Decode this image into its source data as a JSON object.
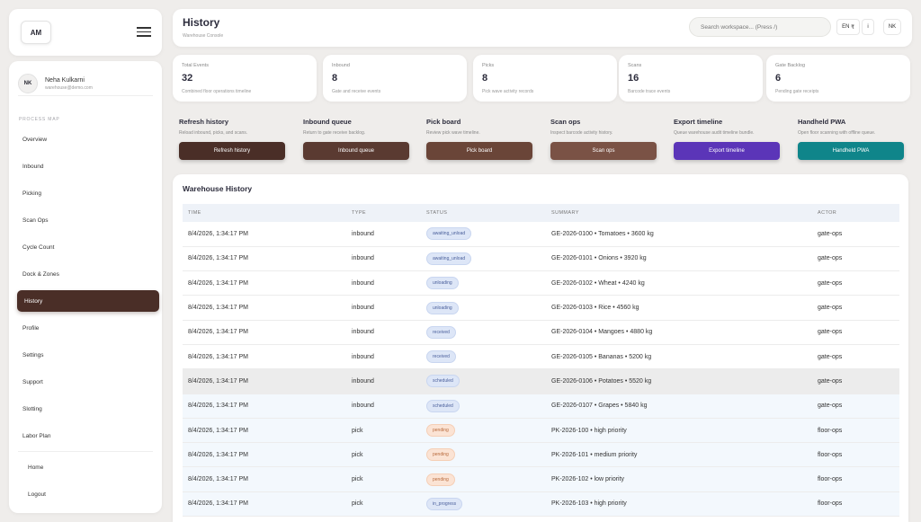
{
  "brand": {
    "logo": "AM"
  },
  "user": {
    "initials": "NK",
    "name": "Neha Kulkarni",
    "email": "warehouse@demo.com"
  },
  "sidebar": {
    "section_label": "PROCESS MAP",
    "items": [
      {
        "label": "Overview",
        "active": false
      },
      {
        "label": "Inbound",
        "active": false
      },
      {
        "label": "Picking",
        "active": false
      },
      {
        "label": "Scan Ops",
        "active": false
      },
      {
        "label": "Cycle Count",
        "active": false
      },
      {
        "label": "Dock & Zones",
        "active": false
      },
      {
        "label": "History",
        "active": true
      },
      {
        "label": "Profile",
        "active": false
      },
      {
        "label": "Settings",
        "active": false
      },
      {
        "label": "Support",
        "active": false
      },
      {
        "label": "Slotting",
        "active": false
      },
      {
        "label": "Labor Plan",
        "active": false
      }
    ],
    "footer": [
      {
        "label": "Home"
      },
      {
        "label": "Logout"
      }
    ]
  },
  "header": {
    "title": "History",
    "subtitle": "Warehouse Console",
    "search_placeholder": "Search workspace... (Press /)",
    "lang": "EN",
    "currency": "₹",
    "info": "i",
    "avatar": "NK"
  },
  "stats": [
    {
      "label": "Total Events",
      "value": "32",
      "desc": "Combined floor operations timeline"
    },
    {
      "label": "Inbound",
      "value": "8",
      "desc": "Gate and receive events"
    },
    {
      "label": "Picks",
      "value": "8",
      "desc": "Pick wave activity records"
    },
    {
      "label": "Scans",
      "value": "16",
      "desc": "Barcode trace events"
    },
    {
      "label": "Gate Backlog",
      "value": "6",
      "desc": "Pending gate receipts"
    }
  ],
  "actions": [
    {
      "title": "Refresh history",
      "desc": "Reload inbound, picks, and scans.",
      "button": "Refresh history",
      "color": "#4a2e27"
    },
    {
      "title": "Inbound queue",
      "desc": "Return to gate receive backlog.",
      "button": "Inbound queue",
      "color": "#5a3a31"
    },
    {
      "title": "Pick board",
      "desc": "Review pick wave timeline.",
      "button": "Pick board",
      "color": "#6a4538"
    },
    {
      "title": "Scan ops",
      "desc": "Inspect barcode activity history.",
      "button": "Scan ops",
      "color": "#7a5245"
    },
    {
      "title": "Export timeline",
      "desc": "Queue warehouse audit timeline bundle.",
      "button": "Export timeline",
      "color": "#5b35b8"
    },
    {
      "title": "Handheld PWA",
      "desc": "Open floor scanning with offline queue.",
      "button": "Handheld PWA",
      "color": "#0f858a"
    }
  ],
  "table": {
    "title": "Warehouse History",
    "columns": [
      "TIME",
      "TYPE",
      "STATUS",
      "SUMMARY",
      "ACTOR"
    ],
    "rows": [
      {
        "time": "8/4/2026, 1:34:17 PM",
        "type": "inbound",
        "status": "awaiting_unload",
        "status_tone": "blue",
        "summary": "GE-2026-0100 • Tomatoes • 3600 kg",
        "actor": "gate-ops",
        "shade": "none"
      },
      {
        "time": "8/4/2026, 1:34:17 PM",
        "type": "inbound",
        "status": "awaiting_unload",
        "status_tone": "blue",
        "summary": "GE-2026-0101 • Onions • 3920 kg",
        "actor": "gate-ops",
        "shade": "none"
      },
      {
        "time": "8/4/2026, 1:34:17 PM",
        "type": "inbound",
        "status": "unloading",
        "status_tone": "blue",
        "summary": "GE-2026-0102 • Wheat • 4240 kg",
        "actor": "gate-ops",
        "shade": "none"
      },
      {
        "time": "8/4/2026, 1:34:17 PM",
        "type": "inbound",
        "status": "unloading",
        "status_tone": "blue",
        "summary": "GE-2026-0103 • Rice • 4560 kg",
        "actor": "gate-ops",
        "shade": "none"
      },
      {
        "time": "8/4/2026, 1:34:17 PM",
        "type": "inbound",
        "status": "received",
        "status_tone": "blue",
        "summary": "GE-2026-0104 • Mangoes • 4880 kg",
        "actor": "gate-ops",
        "shade": "none"
      },
      {
        "time": "8/4/2026, 1:34:17 PM",
        "type": "inbound",
        "status": "received",
        "status_tone": "blue",
        "summary": "GE-2026-0105 • Bananas • 5200 kg",
        "actor": "gate-ops",
        "shade": "none"
      },
      {
        "time": "8/4/2026, 1:34:17 PM",
        "type": "inbound",
        "status": "scheduled",
        "status_tone": "blue",
        "summary": "GE-2026-0106 • Potatoes • 5520 kg",
        "actor": "gate-ops",
        "shade": "highlight"
      },
      {
        "time": "8/4/2026, 1:34:17 PM",
        "type": "inbound",
        "status": "scheduled",
        "status_tone": "blue",
        "summary": "GE-2026-0107 • Grapes • 5840 kg",
        "actor": "gate-ops",
        "shade": "alt"
      },
      {
        "time": "8/4/2026, 1:34:17 PM",
        "type": "pick",
        "status": "pending",
        "status_tone": "orange",
        "summary": "PK-2026-100 • high priority",
        "actor": "floor-ops",
        "shade": "alt"
      },
      {
        "time": "8/4/2026, 1:34:17 PM",
        "type": "pick",
        "status": "pending",
        "status_tone": "orange",
        "summary": "PK-2026-101 • medium priority",
        "actor": "floor-ops",
        "shade": "alt"
      },
      {
        "time": "8/4/2026, 1:34:17 PM",
        "type": "pick",
        "status": "pending",
        "status_tone": "orange",
        "summary": "PK-2026-102 • low priority",
        "actor": "floor-ops",
        "shade": "alt"
      },
      {
        "time": "8/4/2026, 1:34:17 PM",
        "type": "pick",
        "status": "in_progress",
        "status_tone": "blue",
        "summary": "PK-2026-103 • high priority",
        "actor": "floor-ops",
        "shade": "alt"
      }
    ]
  }
}
